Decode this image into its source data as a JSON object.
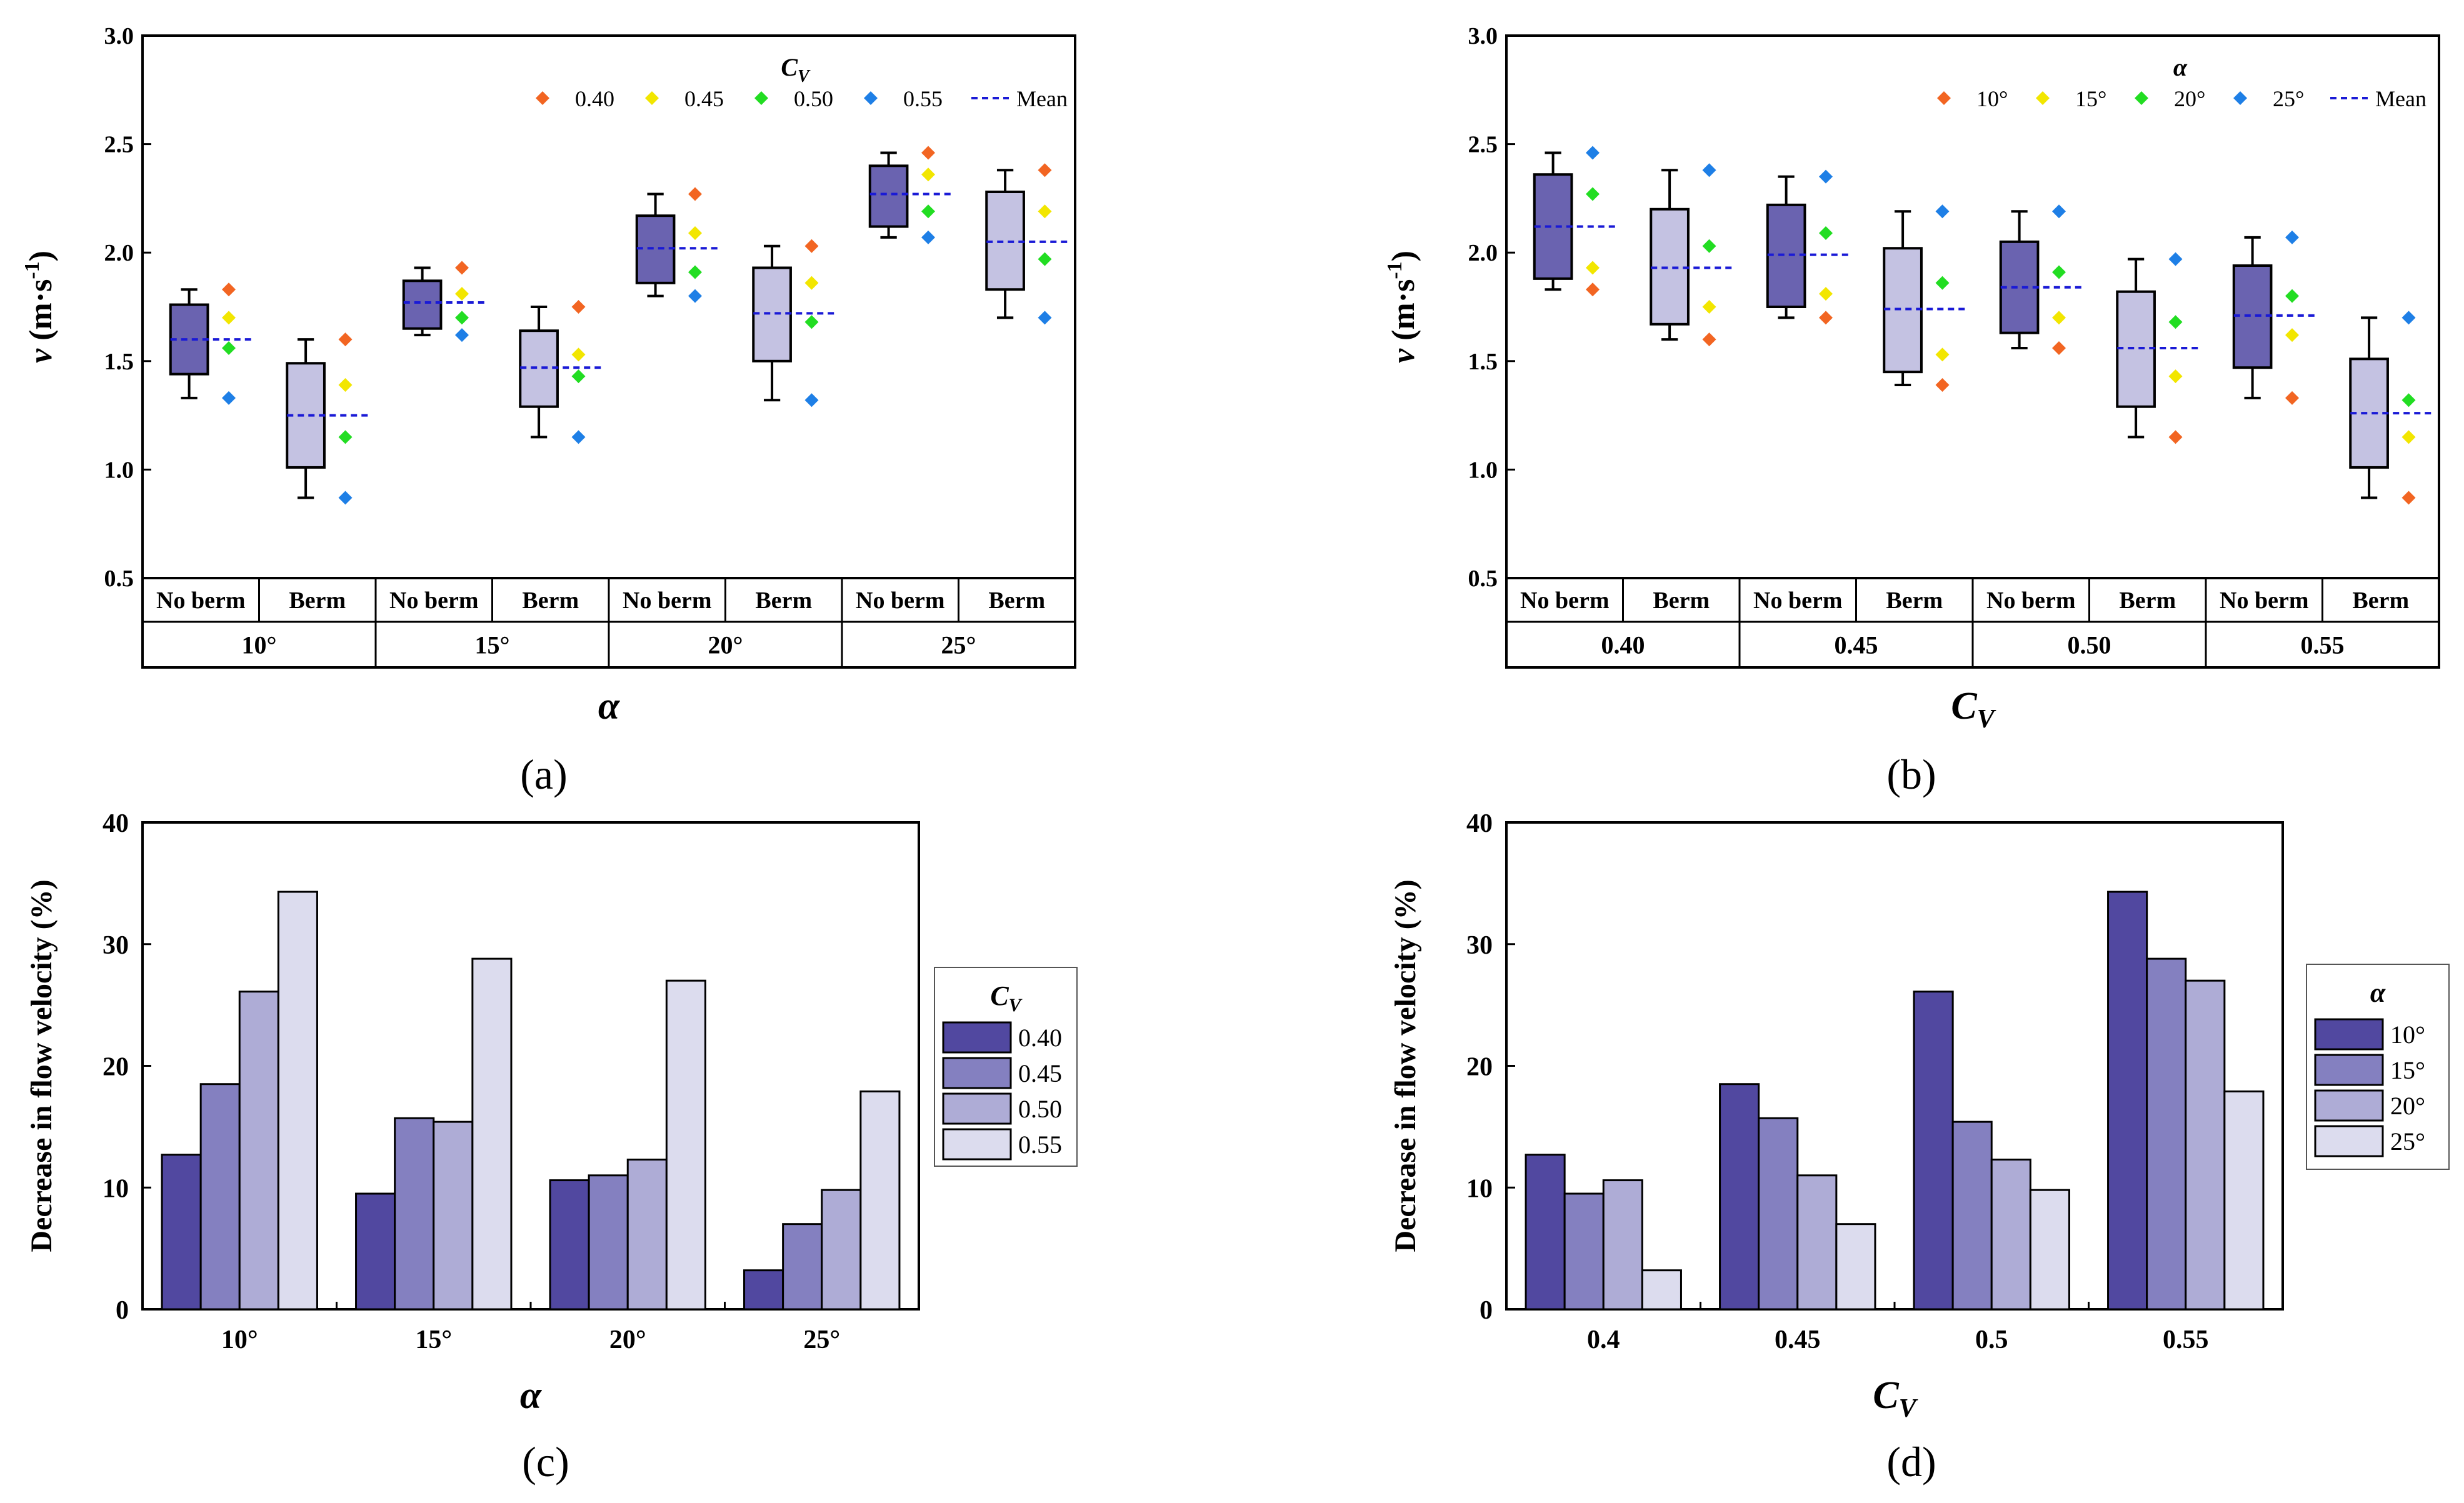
{
  "figure": {
    "panels": {
      "a": {
        "label": "(a)"
      },
      "b": {
        "label": "(b)"
      },
      "c": {
        "label": "(c)"
      },
      "d": {
        "label": "(d)"
      }
    }
  },
  "chart_data": [
    {
      "id": "a",
      "type": "box",
      "ylabel_symbol": "v",
      "ylabel_unit_base": " (m·s",
      "ylabel_unit_exp": "-1",
      "ylabel_unit_close": ")",
      "xlabel": "α",
      "ylim": [
        0.5,
        3.0
      ],
      "yticks": [
        "0.5",
        "1.0",
        "1.5",
        "2.0",
        "2.5",
        "3.0"
      ],
      "subgroups": [
        "No berm",
        "Berm"
      ],
      "groups": [
        "10°",
        "15°",
        "20°",
        "25°"
      ],
      "legend_title_main": "C",
      "legend_title_sub": "V",
      "legend_entries": [
        "0.40",
        "0.45",
        "0.50",
        "0.55"
      ],
      "legend_colors": [
        "#f26522",
        "#f2e600",
        "#22dd22",
        "#1e7fe6"
      ],
      "mean_label": "Mean",
      "boxes": [
        {
          "group": "10°",
          "sub": "No berm",
          "fill": "#6a63b0",
          "whisker_low": 1.33,
          "q1": 1.44,
          "q3": 1.76,
          "whisker_high": 1.83,
          "mean": 1.6,
          "points": [
            1.83,
            1.7,
            1.56,
            1.33
          ]
        },
        {
          "group": "10°",
          "sub": "Berm",
          "fill": "#c4c2e2",
          "whisker_low": 0.87,
          "q1": 1.01,
          "q3": 1.49,
          "whisker_high": 1.6,
          "mean": 1.25,
          "points": [
            1.6,
            1.39,
            1.15,
            0.87
          ]
        },
        {
          "group": "15°",
          "sub": "No berm",
          "fill": "#6a63b0",
          "whisker_low": 1.62,
          "q1": 1.65,
          "q3": 1.87,
          "whisker_high": 1.93,
          "mean": 1.77,
          "points": [
            1.93,
            1.81,
            1.7,
            1.62
          ]
        },
        {
          "group": "15°",
          "sub": "Berm",
          "fill": "#c4c2e2",
          "whisker_low": 1.15,
          "q1": 1.29,
          "q3": 1.64,
          "whisker_high": 1.75,
          "mean": 1.47,
          "points": [
            1.75,
            1.53,
            1.43,
            1.15
          ]
        },
        {
          "group": "20°",
          "sub": "No berm",
          "fill": "#6a63b0",
          "whisker_low": 1.8,
          "q1": 1.86,
          "q3": 2.17,
          "whisker_high": 2.27,
          "mean": 2.02,
          "points": [
            2.27,
            2.09,
            1.91,
            1.8
          ]
        },
        {
          "group": "20°",
          "sub": "Berm",
          "fill": "#c4c2e2",
          "whisker_low": 1.32,
          "q1": 1.5,
          "q3": 1.93,
          "whisker_high": 2.03,
          "mean": 1.72,
          "points": [
            2.03,
            1.86,
            1.68,
            1.32
          ]
        },
        {
          "group": "25°",
          "sub": "No berm",
          "fill": "#6a63b0",
          "whisker_low": 2.07,
          "q1": 2.12,
          "q3": 2.4,
          "whisker_high": 2.46,
          "mean": 2.27,
          "points": [
            2.46,
            2.36,
            2.19,
            2.07
          ]
        },
        {
          "group": "25°",
          "sub": "Berm",
          "fill": "#c4c2e2",
          "whisker_low": 1.7,
          "q1": 1.83,
          "q3": 2.28,
          "whisker_high": 2.38,
          "mean": 2.05,
          "points": [
            2.38,
            2.19,
            1.97,
            1.7
          ]
        }
      ]
    },
    {
      "id": "b",
      "type": "box",
      "ylabel_symbol": "v",
      "ylabel_unit_base": " (m·s",
      "ylabel_unit_exp": "-1",
      "ylabel_unit_close": ")",
      "xlabel_main": "C",
      "xlabel_sub": "V",
      "ylim": [
        0.5,
        3.0
      ],
      "yticks": [
        "0.5",
        "1.0",
        "1.5",
        "2.0",
        "2.5",
        "3.0"
      ],
      "subgroups": [
        "No berm",
        "Berm"
      ],
      "groups": [
        "0.40",
        "0.45",
        "0.50",
        "0.55"
      ],
      "legend_title": "α",
      "legend_entries": [
        "10°",
        "15°",
        "20°",
        "25°"
      ],
      "legend_colors": [
        "#f26522",
        "#f2e600",
        "#22dd22",
        "#1e7fe6"
      ],
      "mean_label": "Mean",
      "boxes": [
        {
          "group": "0.40",
          "sub": "No berm",
          "fill": "#6a63b0",
          "whisker_low": 1.83,
          "q1": 1.88,
          "q3": 2.36,
          "whisker_high": 2.46,
          "mean": 2.12,
          "points": [
            1.83,
            1.93,
            2.27,
            2.46
          ]
        },
        {
          "group": "0.40",
          "sub": "Berm",
          "fill": "#c4c2e2",
          "whisker_low": 1.6,
          "q1": 1.67,
          "q3": 2.2,
          "whisker_high": 2.38,
          "mean": 1.93,
          "points": [
            1.6,
            1.75,
            2.03,
            2.38
          ]
        },
        {
          "group": "0.45",
          "sub": "No berm",
          "fill": "#6a63b0",
          "whisker_low": 1.7,
          "q1": 1.75,
          "q3": 2.22,
          "whisker_high": 2.35,
          "mean": 1.99,
          "points": [
            1.7,
            1.81,
            2.09,
            2.35
          ]
        },
        {
          "group": "0.45",
          "sub": "Berm",
          "fill": "#c4c2e2",
          "whisker_low": 1.39,
          "q1": 1.45,
          "q3": 2.02,
          "whisker_high": 2.19,
          "mean": 1.74,
          "points": [
            1.39,
            1.53,
            1.86,
            2.19
          ]
        },
        {
          "group": "0.50",
          "sub": "No berm",
          "fill": "#6a63b0",
          "whisker_low": 1.56,
          "q1": 1.63,
          "q3": 2.05,
          "whisker_high": 2.19,
          "mean": 1.84,
          "points": [
            1.56,
            1.7,
            1.91,
            2.19
          ]
        },
        {
          "group": "0.50",
          "sub": "Berm",
          "fill": "#c4c2e2",
          "whisker_low": 1.15,
          "q1": 1.29,
          "q3": 1.82,
          "whisker_high": 1.97,
          "mean": 1.56,
          "points": [
            1.15,
            1.43,
            1.68,
            1.97
          ]
        },
        {
          "group": "0.55",
          "sub": "No berm",
          "fill": "#6a63b0",
          "whisker_low": 1.33,
          "q1": 1.47,
          "q3": 1.94,
          "whisker_high": 2.07,
          "mean": 1.71,
          "points": [
            1.33,
            1.62,
            1.8,
            2.07
          ]
        },
        {
          "group": "0.55",
          "sub": "Berm",
          "fill": "#c4c2e2",
          "whisker_low": 0.87,
          "q1": 1.01,
          "q3": 1.51,
          "whisker_high": 1.7,
          "mean": 1.26,
          "points": [
            0.87,
            1.15,
            1.32,
            1.7
          ]
        }
      ]
    },
    {
      "id": "c",
      "type": "bar",
      "ylabel": "Decrease in flow velocity (%)",
      "xlabel": "α",
      "ylim": [
        0,
        40
      ],
      "yticks": [
        "0",
        "10",
        "20",
        "30",
        "40"
      ],
      "categories": [
        "10°",
        "15°",
        "20°",
        "25°"
      ],
      "legend_title_main": "C",
      "legend_title_sub": "V",
      "series": [
        {
          "name": "0.40",
          "color": "#5148a0",
          "values": [
            12.7,
            9.5,
            10.6,
            3.2
          ]
        },
        {
          "name": "0.45",
          "color": "#8480c0",
          "values": [
            18.5,
            15.7,
            11.0,
            7.0
          ]
        },
        {
          "name": "0.50",
          "color": "#aeacd6",
          "values": [
            26.1,
            15.4,
            12.3,
            9.8
          ]
        },
        {
          "name": "0.55",
          "color": "#dcdcee",
          "values": [
            34.3,
            28.8,
            27.0,
            17.9
          ]
        }
      ]
    },
    {
      "id": "d",
      "type": "bar",
      "ylabel": "Decrease in flow velocity (%)",
      "xlabel_main": "C",
      "xlabel_sub": "V",
      "ylim": [
        0,
        40
      ],
      "yticks": [
        "0",
        "10",
        "20",
        "30",
        "40"
      ],
      "categories": [
        "0.4",
        "0.45",
        "0.5",
        "0.55"
      ],
      "legend_title": "α",
      "series": [
        {
          "name": "10°",
          "color": "#5148a0",
          "values": [
            12.7,
            18.5,
            26.1,
            34.3
          ]
        },
        {
          "name": "15°",
          "color": "#8480c0",
          "values": [
            9.5,
            15.7,
            15.4,
            28.8
          ]
        },
        {
          "name": "20°",
          "color": "#aeacd6",
          "values": [
            10.6,
            11.0,
            12.3,
            27.0
          ]
        },
        {
          "name": "25°",
          "color": "#dcdcee",
          "values": [
            3.2,
            7.0,
            9.8,
            17.9
          ]
        }
      ]
    }
  ]
}
